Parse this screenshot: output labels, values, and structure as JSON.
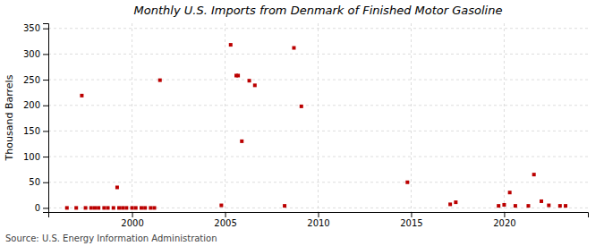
{
  "chart_data": {
    "type": "scatter",
    "title": "Monthly U.S. Imports from Denmark of Finished Motor Gasoline",
    "ylabel": "Thousand Barrels",
    "source": "Source: U.S. Energy Information Administration",
    "color": "#bb0000",
    "marker": "square",
    "grid": true,
    "xlim": [
      1995.5,
      2024.5
    ],
    "ylim": [
      -8,
      360
    ],
    "xticks": [
      2000,
      2005,
      2010,
      2015,
      2020
    ],
    "yticks": [
      0,
      50,
      100,
      150,
      200,
      250,
      300,
      350
    ],
    "x": [
      1997.3,
      1999.2,
      1996.5,
      1997.0,
      1997.5,
      1997.8,
      1998.0,
      1998.2,
      1998.5,
      1998.7,
      1999.0,
      1999.3,
      1999.5,
      1999.7,
      2000.0,
      2000.2,
      2000.5,
      2000.7,
      2001.0,
      2001.2,
      2001.5,
      2004.8,
      2005.3,
      2005.6,
      2005.7,
      2005.9,
      2006.3,
      2006.6,
      2008.2,
      2008.7,
      2009.1,
      2014.8,
      2017.1,
      2017.4,
      2019.7,
      2020.0,
      2020.3,
      2020.6,
      2021.3,
      2021.6,
      2022.0,
      2022.4,
      2023.0,
      2023.3
    ],
    "y": [
      219,
      40,
      0,
      0,
      0,
      0,
      0,
      0,
      0,
      0,
      0,
      0,
      0,
      0,
      0,
      0,
      0,
      0,
      0,
      0,
      249,
      5,
      318,
      258,
      258,
      130,
      248,
      239,
      4,
      312,
      198,
      50,
      7,
      11,
      4,
      6,
      30,
      4,
      4,
      65,
      13,
      5,
      4,
      4
    ]
  }
}
